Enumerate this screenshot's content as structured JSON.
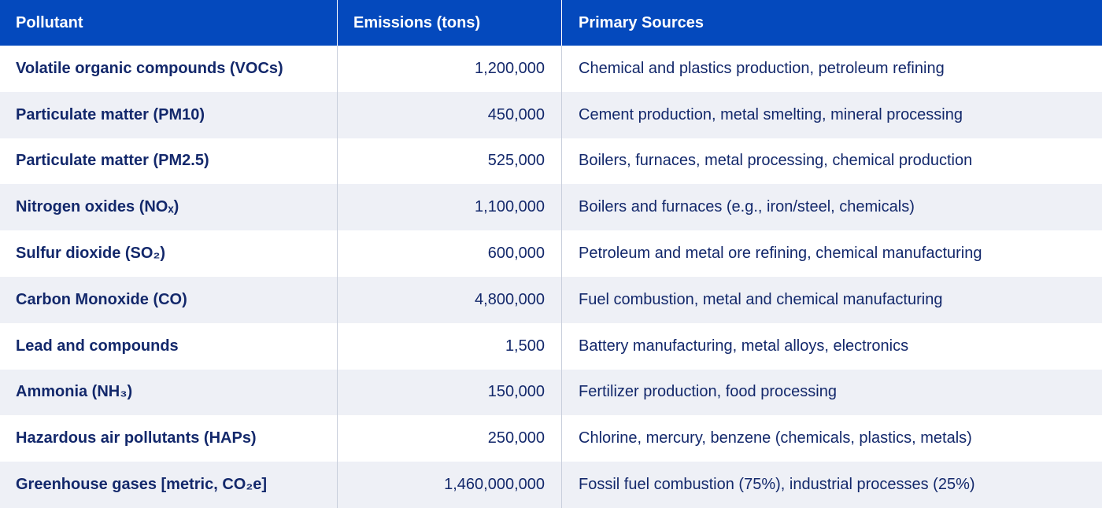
{
  "table": {
    "header": [
      "Pollutant",
      "Emissions (tons)",
      "Primary Sources"
    ],
    "rows": [
      [
        "Volatile organic compounds (VOCs)",
        "1,200,000",
        "Chemical and plastics production, petroleum refining"
      ],
      [
        "Particulate matter (PM10)",
        "450,000",
        "Cement production, metal smelting, mineral processing"
      ],
      [
        "Particulate matter (PM2.5)",
        "525,000",
        "Boilers, furnaces, metal processing, chemical production"
      ],
      [
        "Nitrogen oxides (NOₓ)",
        "1,100,000",
        "Boilers and furnaces (e.g., iron/steel, chemicals)"
      ],
      [
        "Sulfur dioxide (SO₂)",
        "600,000",
        "Petroleum and metal ore refining, chemical manufacturing"
      ],
      [
        "Carbon Monoxide (CO)",
        "4,800,000",
        "Fuel combustion, metal and chemical manufacturing"
      ],
      [
        "Lead and compounds",
        "1,500",
        "Battery manufacturing, metal alloys, electronics"
      ],
      [
        "Ammonia (NH₃)",
        "150,000",
        "Fertilizer production, food processing"
      ],
      [
        "Hazardous air pollutants (HAPs)",
        "250,000",
        "Chlorine, mercury, benzene (chemicals, plastics, metals)"
      ],
      [
        "Greenhouse gases [metric, CO₂e]",
        "1,460,000,000",
        "Fossil fuel combustion (75%), industrial processes (25%)"
      ]
    ]
  }
}
